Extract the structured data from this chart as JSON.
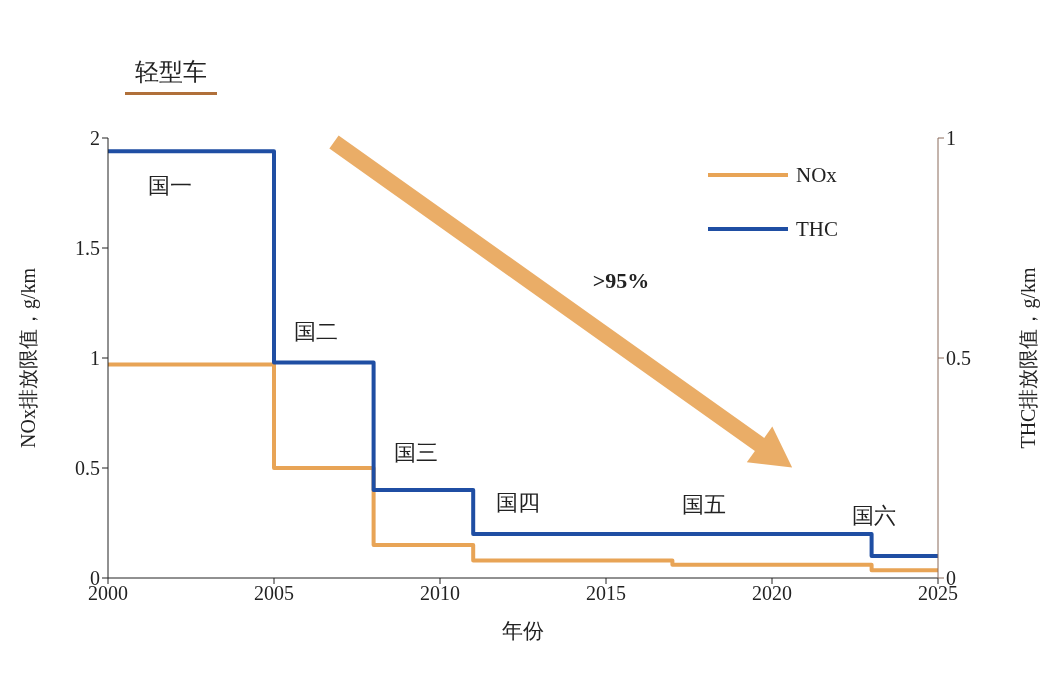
{
  "chart_data": {
    "type": "step",
    "xlabel": "年份",
    "ylabel": "NOx排放限值，g/km",
    "y2label": "THC排放限值，g/km",
    "x": [
      2000,
      2005,
      2008,
      2011,
      2017,
      2023,
      2025
    ],
    "series": [
      {
        "name": "NOx",
        "color": "#e8a456",
        "values": [
          0.97,
          0.5,
          0.15,
          0.08,
          0.06,
          0.035,
          0.035
        ]
      },
      {
        "name": "THC",
        "color": "#1f4ea3",
        "axis": "y2",
        "values": [
          0.97,
          0.49,
          0.2,
          0.1,
          0.1,
          0.05,
          0.05
        ]
      }
    ],
    "xlim": [
      2000,
      2025
    ],
    "xticks": [
      2000,
      2005,
      2010,
      2015,
      2020,
      2025
    ],
    "ylim": [
      0,
      2
    ],
    "yticks": [
      0,
      0.5,
      1,
      1.5,
      2
    ],
    "y2lim": [
      0,
      1
    ],
    "y2ticks": [
      0,
      0.5,
      1
    ],
    "legend": "top right",
    "line_style": "solid",
    "marker": "none",
    "grid": false,
    "annotations": [
      "轻型车",
      "国一",
      "国二",
      "国三",
      "国四",
      "国五",
      "国六",
      ">95%"
    ]
  }
}
